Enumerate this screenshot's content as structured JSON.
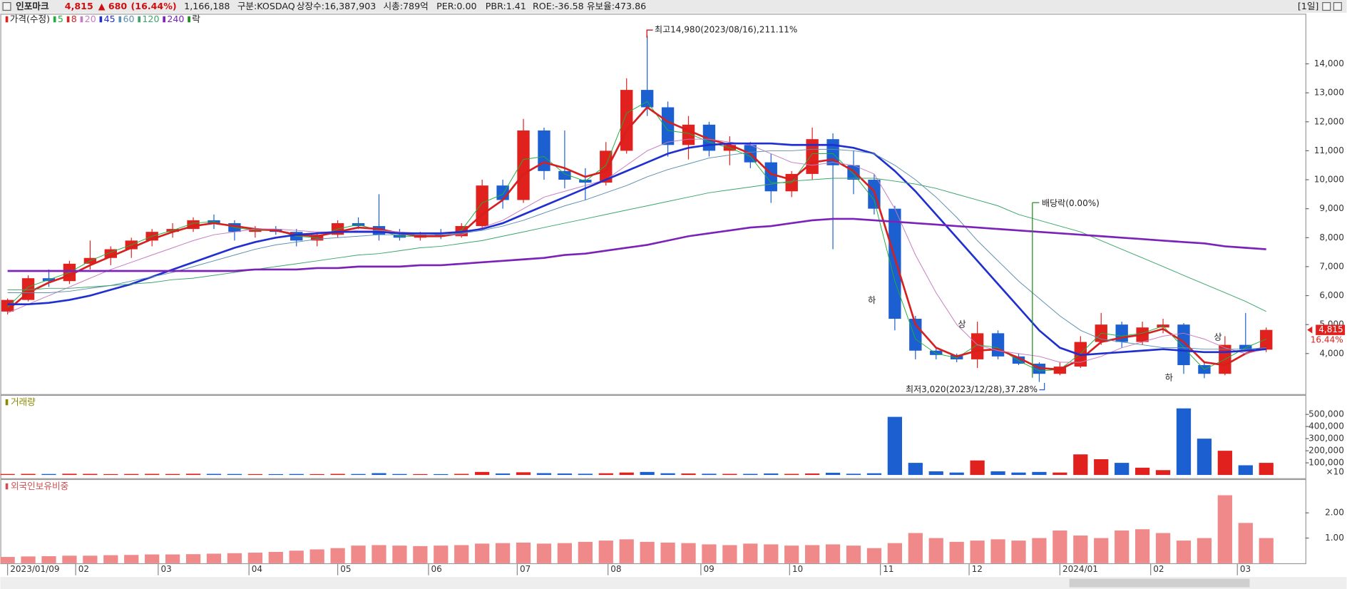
{
  "header": {
    "name": "인포마크",
    "price": "4,815",
    "change": "▲ 680",
    "change_pct": "(16.44%)",
    "volume": "1,166,188",
    "info": [
      "구분:KOSDAQ",
      "상장수:16,387,903",
      "시총:789억",
      "PER:0.00",
      "PBR:1.41",
      "ROE:-36.58",
      "유보율:473.86"
    ],
    "period": "[1일]"
  },
  "chart_data": [
    {
      "type": "candlestick",
      "legend_label": "가격(수정)",
      "legend_extra": "락",
      "legend_extra_color": "#1a8a1a",
      "up_color": "#e0211d",
      "down_color": "#1c5fd0",
      "x": [
        0,
        1,
        2,
        3,
        4,
        5,
        6,
        7,
        8,
        9,
        10,
        11,
        12,
        13,
        14,
        15,
        16,
        17,
        18,
        19,
        20,
        21,
        22,
        23,
        24,
        25,
        26,
        27,
        28,
        29,
        30,
        31,
        32,
        33,
        34,
        35,
        36,
        37,
        38,
        39,
        40,
        41,
        42,
        43,
        44,
        45,
        46,
        47,
        48,
        49,
        50,
        51,
        52,
        53,
        54,
        55,
        56,
        57,
        58,
        59,
        60,
        61
      ],
      "open": [
        5450,
        5850,
        6600,
        6500,
        7100,
        7300,
        7600,
        7900,
        8200,
        8300,
        8600,
        8500,
        8200,
        8300,
        8200,
        7900,
        8100,
        8500,
        8400,
        8100,
        8000,
        8100,
        8050,
        8400,
        9800,
        9300,
        11700,
        10300,
        10000,
        9900,
        11000,
        13100,
        12500,
        11200,
        11900,
        11000,
        11200,
        10600,
        9600,
        10200,
        11400,
        10500,
        10000,
        9000,
        5200,
        4100,
        3950,
        3800,
        4700,
        3900,
        3650,
        3300,
        3550,
        4400,
        5000,
        4400,
        4900,
        5000,
        3600,
        3300,
        4300,
        4135
      ],
      "high": [
        5900,
        6700,
        6900,
        7200,
        7900,
        7700,
        8000,
        8300,
        8500,
        8700,
        8800,
        8600,
        8400,
        8400,
        8300,
        8200,
        8600,
        8700,
        9500,
        8300,
        8200,
        8300,
        8500,
        10000,
        10000,
        12100,
        11800,
        11700,
        10400,
        11300,
        13500,
        14980,
        12700,
        12200,
        12000,
        11500,
        11300,
        10900,
        10300,
        11800,
        11600,
        11000,
        10200,
        9100,
        5300,
        4200,
        4000,
        5100,
        4800,
        4000,
        3700,
        3700,
        4600,
        5400,
        5100,
        5100,
        5200,
        5050,
        3700,
        4600,
        5400,
        4900
      ],
      "low": [
        5350,
        5800,
        6300,
        6400,
        6900,
        7050,
        7300,
        7700,
        8000,
        8200,
        8300,
        7900,
        8000,
        8100,
        7700,
        7700,
        8000,
        8300,
        7900,
        7900,
        7900,
        7950,
        8000,
        8300,
        9000,
        9200,
        10000,
        9700,
        9300,
        9800,
        10900,
        12200,
        10800,
        10700,
        10800,
        10500,
        10400,
        9200,
        9400,
        10000,
        7600,
        9500,
        8800,
        4800,
        3800,
        3800,
        3700,
        3500,
        3800,
        3600,
        3020,
        3250,
        3500,
        4300,
        4200,
        4300,
        4700,
        3300,
        3150,
        3250,
        4200,
        4050
      ],
      "close": [
        5850,
        6600,
        6500,
        7100,
        7300,
        7600,
        7900,
        8200,
        8300,
        8600,
        8500,
        8200,
        8300,
        8200,
        7900,
        8100,
        8500,
        8400,
        8100,
        8000,
        8100,
        8050,
        8400,
        9800,
        9300,
        11700,
        10300,
        10000,
        9900,
        11000,
        13100,
        12500,
        11200,
        11900,
        11000,
        11200,
        10600,
        9600,
        10200,
        11400,
        10500,
        10000,
        9000,
        5200,
        4100,
        3950,
        3800,
        4700,
        3900,
        3650,
        3300,
        3550,
        4400,
        5000,
        4400,
        4900,
        5000,
        3600,
        3300,
        4300,
        4135,
        4815
      ],
      "series": [
        {
          "name": "5",
          "color": "#1fae3a",
          "width": 0.8,
          "values": [
            5600,
            6300,
            6550,
            6800,
            7200,
            7500,
            7750,
            8050,
            8250,
            8500,
            8550,
            8350,
            8250,
            8250,
            8050,
            8000,
            8300,
            8450,
            8250,
            8050,
            8050,
            8050,
            8250,
            9200,
            9500,
            10700,
            10800,
            10200,
            9950,
            10500,
            12300,
            12700,
            11700,
            11600,
            11300,
            11100,
            10800,
            9900,
            9900,
            10900,
            10900,
            10200,
            9300,
            6500,
            4500,
            4000,
            3850,
            4300,
            4200,
            3750,
            3400,
            3450,
            4000,
            4700,
            4600,
            4700,
            4950,
            4200,
            3450,
            3800,
            4200,
            4500
          ]
        },
        {
          "name": "8",
          "color": "#d61f1f",
          "width": 2.2,
          "values": [
            5500,
            6100,
            6450,
            6700,
            7050,
            7350,
            7650,
            7950,
            8200,
            8400,
            8500,
            8400,
            8300,
            8250,
            8100,
            8050,
            8200,
            8350,
            8300,
            8150,
            8050,
            8050,
            8150,
            8800,
            9300,
            10200,
            10600,
            10400,
            10100,
            10300,
            11700,
            12500,
            12000,
            11700,
            11400,
            11200,
            10900,
            10200,
            10000,
            10600,
            10700,
            10300,
            9600,
            7300,
            5000,
            4200,
            3900,
            4100,
            4150,
            3850,
            3500,
            3450,
            3800,
            4400,
            4550,
            4650,
            4850,
            4400,
            3700,
            3600,
            4000,
            4250
          ]
        },
        {
          "name": "20",
          "color": "#c77bc0",
          "width": 0.8,
          "values": [
            5400,
            5700,
            6000,
            6300,
            6600,
            6900,
            7150,
            7400,
            7650,
            7900,
            8100,
            8200,
            8300,
            8300,
            8250,
            8200,
            8200,
            8250,
            8250,
            8200,
            8150,
            8100,
            8100,
            8350,
            8600,
            9000,
            9400,
            9600,
            9800,
            10000,
            10500,
            11000,
            11300,
            11400,
            11400,
            11300,
            11200,
            10900,
            10600,
            10500,
            10600,
            10500,
            10200,
            9000,
            7400,
            6100,
            5000,
            4300,
            4100,
            4000,
            3900,
            3700,
            3700,
            3900,
            4200,
            4400,
            4600,
            4700,
            4500,
            4200,
            4000,
            4150
          ]
        },
        {
          "name": "45",
          "color": "#1f2fd0",
          "width": 2.2,
          "values": [
            5700,
            5700,
            5750,
            5850,
            6000,
            6200,
            6400,
            6650,
            6900,
            7150,
            7400,
            7650,
            7850,
            8000,
            8100,
            8150,
            8200,
            8200,
            8200,
            8150,
            8150,
            8150,
            8200,
            8300,
            8500,
            8800,
            9100,
            9400,
            9700,
            10000,
            10300,
            10600,
            10900,
            11100,
            11200,
            11250,
            11250,
            11250,
            11200,
            11200,
            11200,
            11100,
            10900,
            10300,
            9600,
            8800,
            8000,
            7200,
            6400,
            5600,
            4800,
            4200,
            3950,
            4000,
            4050,
            4100,
            4150,
            4100,
            4050,
            4050,
            4100,
            4150
          ]
        },
        {
          "name": "60",
          "color": "#5a8fb0",
          "width": 0.8,
          "values": [
            6100,
            6100,
            6100,
            6150,
            6250,
            6350,
            6500,
            6650,
            6800,
            7000,
            7200,
            7400,
            7600,
            7750,
            7850,
            7950,
            8000,
            8050,
            8100,
            8100,
            8100,
            8100,
            8150,
            8250,
            8400,
            8600,
            8850,
            9100,
            9300,
            9550,
            9800,
            10100,
            10350,
            10550,
            10750,
            10850,
            10950,
            11000,
            11000,
            11050,
            11050,
            11000,
            10900,
            10500,
            10000,
            9400,
            8700,
            7900,
            7200,
            6500,
            5900,
            5300,
            4800,
            4500,
            4400,
            4300,
            4200,
            4200,
            4150,
            4150,
            4150,
            4200
          ]
        },
        {
          "name": "120",
          "color": "#3aa56a",
          "width": 0.8,
          "values": [
            6200,
            6200,
            6250,
            6250,
            6300,
            6350,
            6400,
            6450,
            6550,
            6600,
            6700,
            6800,
            6900,
            7000,
            7100,
            7200,
            7300,
            7400,
            7450,
            7550,
            7650,
            7700,
            7800,
            7900,
            8050,
            8200,
            8350,
            8500,
            8650,
            8800,
            8950,
            9100,
            9250,
            9400,
            9550,
            9650,
            9750,
            9850,
            9950,
            10000,
            10050,
            10050,
            10050,
            9950,
            9850,
            9700,
            9500,
            9300,
            9100,
            8800,
            8600,
            8400,
            8200,
            7900,
            7600,
            7300,
            7000,
            6700,
            6400,
            6100,
            5800,
            5450
          ]
        },
        {
          "name": "240",
          "color": "#7b22b8",
          "width": 2.2,
          "values": [
            6850,
            6850,
            6850,
            6850,
            6850,
            6850,
            6850,
            6850,
            6850,
            6850,
            6850,
            6850,
            6900,
            6900,
            6900,
            6950,
            6950,
            7000,
            7000,
            7000,
            7050,
            7050,
            7100,
            7150,
            7200,
            7250,
            7300,
            7400,
            7450,
            7550,
            7650,
            7750,
            7900,
            8050,
            8150,
            8250,
            8350,
            8400,
            8500,
            8600,
            8650,
            8650,
            8600,
            8550,
            8500,
            8450,
            8400,
            8350,
            8300,
            8250,
            8200,
            8150,
            8100,
            8050,
            8000,
            7950,
            7900,
            7850,
            7800,
            7700,
            7650,
            7600
          ]
        }
      ],
      "xlim": [
        -0.35,
        62.9
      ],
      "xticks": [
        {
          "value": 0,
          "label": "2023/01/09"
        },
        {
          "value": 3.3,
          "label": "02"
        },
        {
          "value": 7.3,
          "label": "03"
        },
        {
          "value": 11.7,
          "label": "04"
        },
        {
          "value": 16,
          "label": "05"
        },
        {
          "value": 20.4,
          "label": "06"
        },
        {
          "value": 24.7,
          "label": "07"
        },
        {
          "value": 29.1,
          "label": "08"
        },
        {
          "value": 33.6,
          "label": "09"
        },
        {
          "value": 37.9,
          "label": "10"
        },
        {
          "value": 42.3,
          "label": "11"
        },
        {
          "value": 46.6,
          "label": "12"
        },
        {
          "value": 51,
          "label": "2024/01"
        },
        {
          "value": 55.4,
          "label": "02"
        },
        {
          "value": 59.6,
          "label": "03"
        }
      ],
      "ylim": [
        2600,
        15700
      ],
      "yticks": [
        {
          "value": 4000,
          "label": "4,000"
        },
        {
          "value": 5000,
          "label": "5,000"
        },
        {
          "value": 6000,
          "label": "6,000"
        },
        {
          "value": 7000,
          "label": "7,000"
        },
        {
          "value": 8000,
          "label": "8,000"
        },
        {
          "value": 9000,
          "label": "9,000"
        },
        {
          "value": 10000,
          "label": "10,000"
        },
        {
          "value": 11000,
          "label": "11,000"
        },
        {
          "value": 12000,
          "label": "12,000"
        },
        {
          "value": 13000,
          "label": "13,000"
        },
        {
          "value": 14000,
          "label": "14,000"
        }
      ],
      "annotations": [
        "최고14,980(2023/08/16),211.11%",
        "최저3,020(2023/12/28),37.28%",
        "배당락(0.00%)",
        "하",
        "상",
        "하",
        "상"
      ],
      "last_price_label": "4,815",
      "last_change_label": "16.44%"
    },
    {
      "type": "bar",
      "title": "거래량",
      "title_color": "#8a8a00",
      "unit_label": "×10",
      "values": [
        8000,
        9000,
        8000,
        10000,
        9000,
        7000,
        8000,
        9000,
        8000,
        10000,
        9000,
        8000,
        7000,
        7000,
        8000,
        7000,
        9000,
        8000,
        15000,
        8000,
        7000,
        7000,
        9000,
        25000,
        12000,
        22000,
        15000,
        12000,
        10000,
        14000,
        20000,
        25000,
        14000,
        12000,
        10000,
        9000,
        9000,
        12000,
        9000,
        12000,
        18000,
        10000,
        14000,
        480000,
        100000,
        30000,
        20000,
        120000,
        30000,
        20000,
        25000,
        20000,
        170000,
        130000,
        100000,
        60000,
        40000,
        550000,
        300000,
        200000,
        80000,
        100000
      ],
      "ylim": [
        -20000,
        590000
      ],
      "yticks": [
        {
          "value": 100000,
          "label": "100,000"
        },
        {
          "value": 200000,
          "label": "200,000"
        },
        {
          "value": 300000,
          "label": "300,000"
        },
        {
          "value": 400000,
          "label": "400,000"
        },
        {
          "value": 500000,
          "label": "500,000"
        }
      ]
    },
    {
      "type": "bar",
      "title": "외국인보유비중",
      "title_color": "#d05050",
      "color": "#f08a8a",
      "values": [
        0.25,
        0.27,
        0.28,
        0.3,
        0.3,
        0.32,
        0.33,
        0.35,
        0.35,
        0.36,
        0.38,
        0.4,
        0.42,
        0.45,
        0.5,
        0.55,
        0.6,
        0.7,
        0.72,
        0.7,
        0.68,
        0.7,
        0.72,
        0.78,
        0.8,
        0.82,
        0.78,
        0.8,
        0.85,
        0.9,
        0.95,
        0.85,
        0.82,
        0.8,
        0.75,
        0.72,
        0.78,
        0.75,
        0.7,
        0.72,
        0.75,
        0.7,
        0.6,
        0.8,
        1.2,
        1.0,
        0.85,
        0.9,
        0.95,
        0.9,
        1.0,
        1.3,
        1.1,
        1.0,
        1.3,
        1.35,
        1.2,
        0.9,
        1.0,
        2.7,
        1.6,
        1.0
      ],
      "ylim": [
        0,
        3
      ],
      "yticks": [
        {
          "value": 1,
          "label": "1.00"
        },
        {
          "value": 2,
          "label": "2.00"
        }
      ]
    }
  ]
}
